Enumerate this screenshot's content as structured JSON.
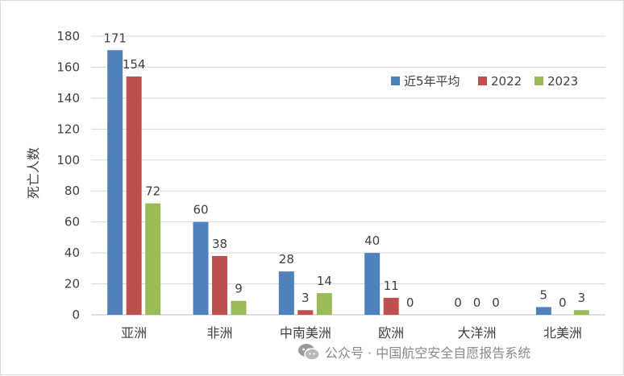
{
  "chart_data": {
    "type": "bar",
    "title": "",
    "xlabel": "",
    "ylabel": "死亡人数",
    "ylim": [
      0,
      180
    ],
    "yticks": [
      0,
      20,
      40,
      60,
      80,
      100,
      120,
      140,
      160,
      180
    ],
    "grid": true,
    "legend_position": "top-right",
    "categories": [
      "亚洲",
      "非洲",
      "中南美洲",
      "欧洲",
      "大洋洲",
      "北美洲"
    ],
    "series": [
      {
        "name": "近5年平均",
        "color": "#4f81bd",
        "values": [
          171,
          60,
          28,
          40,
          0,
          5
        ]
      },
      {
        "name": "2022",
        "color": "#c0504d",
        "values": [
          154,
          38,
          3,
          11,
          0,
          0
        ]
      },
      {
        "name": "2023",
        "color": "#9bbb59",
        "values": [
          72,
          9,
          14,
          0,
          0,
          3
        ]
      }
    ]
  },
  "watermark": {
    "icon": "wechat-icon",
    "text": "公众号 · 中国航空安全自愿报告系统"
  }
}
